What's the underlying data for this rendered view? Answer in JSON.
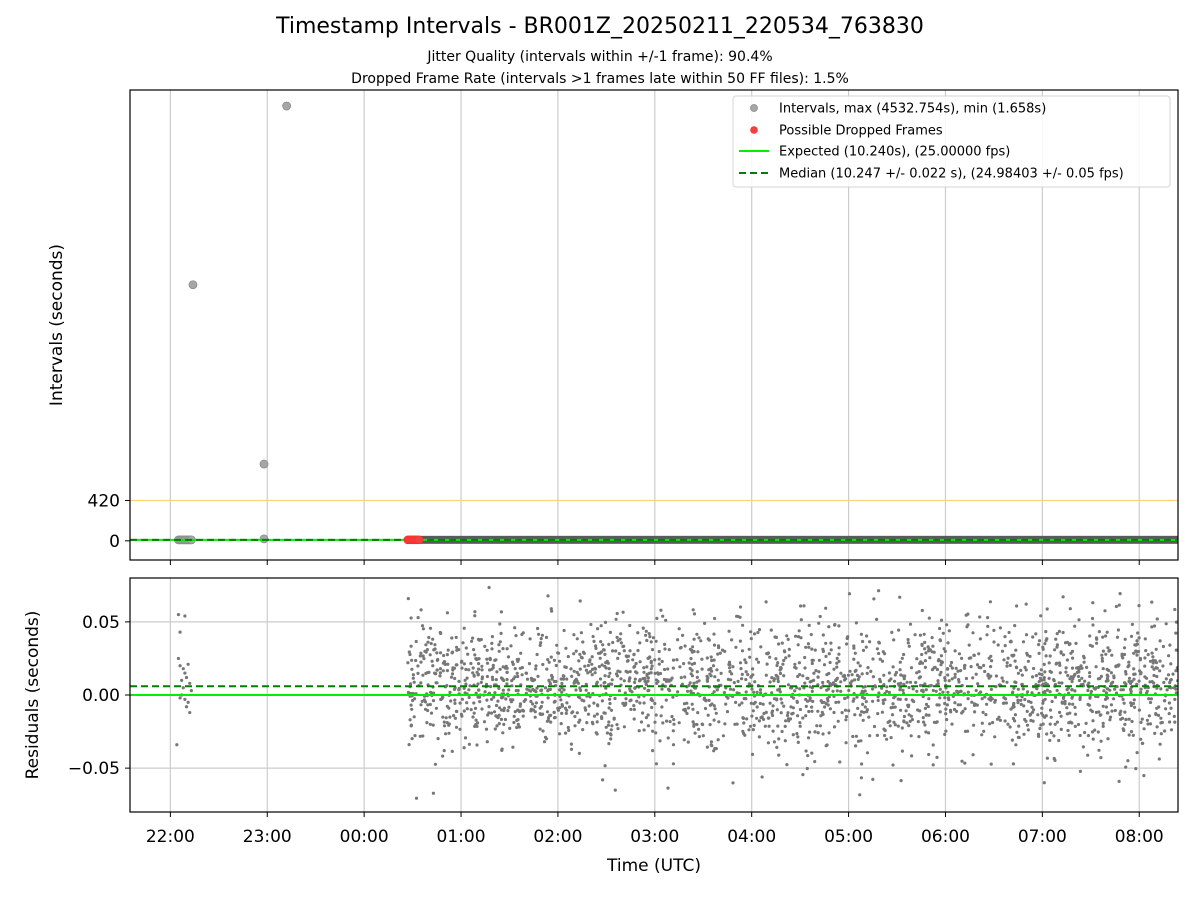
{
  "chart_data": [
    {
      "type": "scatter",
      "panel": "intervals",
      "title": "Timestamp Intervals - BR001Z_20250211_220534_763830",
      "subtitles": [
        "Jitter Quality (intervals within +/-1 frame): 90.4%",
        "Dropped Frame Rate (intervals >1 frames late within 50 FF files): 1.5%"
      ],
      "ylabel": "Intervals (seconds)",
      "yticks": [
        "0",
        "420"
      ],
      "x_range": [
        "21:35",
        "08:24"
      ],
      "grid": "vertical",
      "legend_position": "top-right",
      "legend": [
        "Intervals, max (4532.754s), min (1.658s)",
        "Possible Dropped Frames",
        "Expected (10.240s), (25.00000 fps)",
        "Median (10.247 +/- 0.022 s), (24.98403 +/- 0.05 fps)"
      ],
      "threshold_line": 420,
      "expected_line": 10.24,
      "median_line": 10.247,
      "ylim": [
        -200,
        4700
      ],
      "series": [
        {
          "name": "Intervals, max (4532.754s), min (1.658s)",
          "color": "#9a9a9a",
          "points": [
            {
              "x": "22:05",
              "y": 10
            },
            {
              "x": "22:06",
              "y": 10
            },
            {
              "x": "22:07",
              "y": 10
            },
            {
              "x": "22:08",
              "y": 10
            },
            {
              "x": "22:09",
              "y": 10
            },
            {
              "x": "22:10",
              "y": 10
            },
            {
              "x": "22:11",
              "y": 10
            },
            {
              "x": "22:12",
              "y": 10
            },
            {
              "x": "22:13",
              "y": 10
            },
            {
              "x": "22:14",
              "y": 2670
            },
            {
              "x": "22:58",
              "y": 800
            },
            {
              "x": "22:58",
              "y": 20
            },
            {
              "x": "23:12",
              "y": 4532.754
            }
          ],
          "dense_band": {
            "from": "00:34",
            "to": "08:24",
            "y": 10.24
          }
        },
        {
          "name": "Possible Dropped Frames",
          "color": "#ee3333",
          "points": [
            {
              "x": "00:27",
              "y": 10
            },
            {
              "x": "00:28",
              "y": 10
            },
            {
              "x": "00:29",
              "y": 10
            },
            {
              "x": "00:30",
              "y": 10
            },
            {
              "x": "00:31",
              "y": 10
            },
            {
              "x": "00:32",
              "y": 10
            },
            {
              "x": "00:33",
              "y": 10
            },
            {
              "x": "00:34",
              "y": 10
            }
          ]
        }
      ]
    },
    {
      "type": "scatter",
      "panel": "residuals",
      "xlabel": "Time (UTC)",
      "ylabel": "Residuals (seconds)",
      "xticks": [
        "22:00",
        "23:00",
        "00:00",
        "01:00",
        "02:00",
        "03:00",
        "04:00",
        "05:00",
        "06:00",
        "07:00",
        "08:00"
      ],
      "yticks": [
        "0.05",
        "0.00",
        "−0.05"
      ],
      "ylim": [
        -0.08,
        0.08
      ],
      "x_range": [
        "21:35",
        "08:24"
      ],
      "grid": "both",
      "expected_line": 0.0,
      "median_line": 0.006,
      "point_color": "#777777",
      "cluster1": {
        "x_range": [
          "22:04",
          "22:13"
        ],
        "points": [
          {
            "x": "22:05",
            "y": 0.055
          },
          {
            "x": "22:06",
            "y": 0.043
          },
          {
            "x": "22:09",
            "y": 0.054
          },
          {
            "x": "22:05",
            "y": 0.025
          },
          {
            "x": "22:06",
            "y": 0.02
          },
          {
            "x": "22:07",
            "y": 0.01
          },
          {
            "x": "22:08",
            "y": 0.005
          },
          {
            "x": "22:09",
            "y": -0.003
          },
          {
            "x": "22:10",
            "y": -0.008
          },
          {
            "x": "22:11",
            "y": 0.021
          },
          {
            "x": "22:12",
            "y": -0.012
          },
          {
            "x": "22:04",
            "y": -0.034
          },
          {
            "x": "22:07",
            "y": 0.0
          },
          {
            "x": "22:10",
            "y": 0.012
          },
          {
            "x": "22:11",
            "y": -0.005
          },
          {
            "x": "22:08",
            "y": 0.018
          },
          {
            "x": "22:12",
            "y": 0.008
          },
          {
            "x": "22:06",
            "y": -0.002
          },
          {
            "x": "22:09",
            "y": 0.015
          },
          {
            "x": "22:13",
            "y": 0.003
          }
        ]
      },
      "cluster2": {
        "x_range": [
          "00:27",
          "08:24"
        ],
        "y_range": [
          -0.072,
          0.075
        ],
        "center": 0.006,
        "spread": 0.022
      }
    }
  ]
}
